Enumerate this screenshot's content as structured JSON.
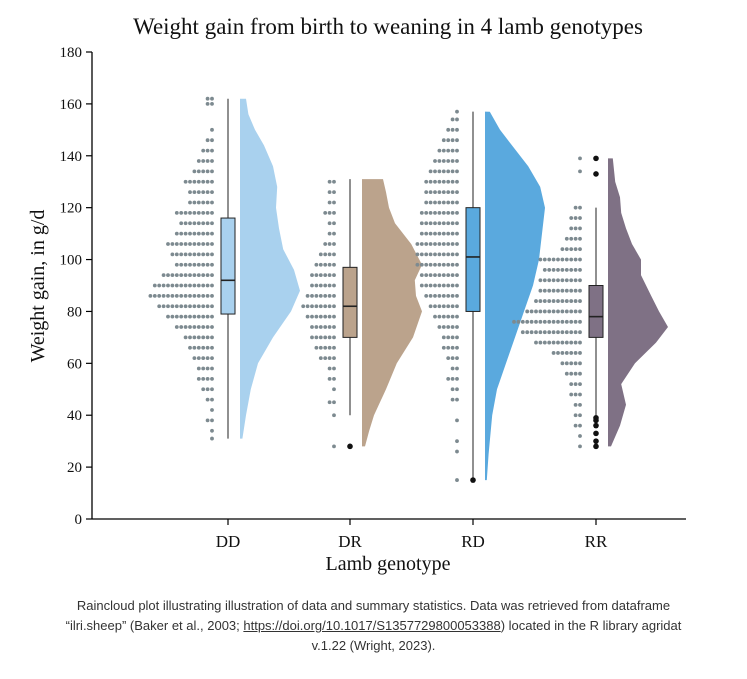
{
  "chart_data": {
    "type": "raincloud",
    "title": "Weight gain from birth to weaning in 4 lamb genotypes",
    "xlabel": "Lamb genotype",
    "ylabel": "Weight gain, in g/d",
    "ylim": [
      0,
      180
    ],
    "yticks": [
      0,
      20,
      40,
      60,
      80,
      100,
      120,
      140,
      160,
      180
    ],
    "categories": [
      "DD",
      "DR",
      "RD",
      "RR"
    ],
    "series": [
      {
        "category": "DD",
        "color": "#a9d1ee",
        "box": {
          "min": 31,
          "q1": 79,
          "median": 92,
          "q3": 116,
          "max": 162
        },
        "outliers": [],
        "density": [
          [
            31,
            0.04
          ],
          [
            40,
            0.1
          ],
          [
            50,
            0.18
          ],
          [
            60,
            0.3
          ],
          [
            70,
            0.55
          ],
          [
            80,
            0.85
          ],
          [
            88,
            1.0
          ],
          [
            96,
            0.9
          ],
          [
            104,
            0.72
          ],
          [
            112,
            0.65
          ],
          [
            120,
            0.6
          ],
          [
            128,
            0.62
          ],
          [
            136,
            0.55
          ],
          [
            144,
            0.4
          ],
          [
            150,
            0.25
          ],
          [
            156,
            0.14
          ],
          [
            162,
            0.1
          ]
        ],
        "dots": [
          [
            31,
            1
          ],
          [
            34,
            1
          ],
          [
            38,
            2
          ],
          [
            42,
            1
          ],
          [
            46,
            2
          ],
          [
            50,
            3
          ],
          [
            54,
            4
          ],
          [
            58,
            4
          ],
          [
            62,
            5
          ],
          [
            66,
            6
          ],
          [
            70,
            7
          ],
          [
            74,
            9
          ],
          [
            78,
            11
          ],
          [
            82,
            13
          ],
          [
            86,
            15
          ],
          [
            90,
            14
          ],
          [
            94,
            12
          ],
          [
            98,
            9
          ],
          [
            102,
            10
          ],
          [
            106,
            11
          ],
          [
            110,
            9
          ],
          [
            114,
            8
          ],
          [
            118,
            9
          ],
          [
            122,
            6
          ],
          [
            126,
            6
          ],
          [
            130,
            7
          ],
          [
            134,
            5
          ],
          [
            138,
            4
          ],
          [
            142,
            3
          ],
          [
            146,
            2
          ],
          [
            150,
            1
          ],
          [
            160,
            2
          ],
          [
            162,
            2
          ]
        ]
      },
      {
        "category": "DR",
        "color": "#bba38c",
        "box": {
          "min": 40,
          "q1": 70,
          "median": 82,
          "q3": 97,
          "max": 131
        },
        "outliers": [
          28
        ],
        "density": [
          [
            28,
            0.05
          ],
          [
            34,
            0.12
          ],
          [
            40,
            0.2
          ],
          [
            50,
            0.4
          ],
          [
            60,
            0.58
          ],
          [
            70,
            0.85
          ],
          [
            80,
            1.0
          ],
          [
            86,
            0.9
          ],
          [
            92,
            0.88
          ],
          [
            98,
            1.0
          ],
          [
            106,
            0.82
          ],
          [
            114,
            0.55
          ],
          [
            120,
            0.45
          ],
          [
            126,
            0.4
          ],
          [
            131,
            0.35
          ]
        ],
        "dots": [
          [
            28,
            1
          ],
          [
            40,
            1
          ],
          [
            45,
            2
          ],
          [
            50,
            1
          ],
          [
            54,
            2
          ],
          [
            58,
            2
          ],
          [
            62,
            4
          ],
          [
            66,
            5
          ],
          [
            70,
            6
          ],
          [
            74,
            6
          ],
          [
            78,
            7
          ],
          [
            82,
            8
          ],
          [
            86,
            7
          ],
          [
            90,
            6
          ],
          [
            94,
            6
          ],
          [
            98,
            5
          ],
          [
            102,
            4
          ],
          [
            106,
            3
          ],
          [
            110,
            2
          ],
          [
            114,
            2
          ],
          [
            118,
            3
          ],
          [
            122,
            2
          ],
          [
            126,
            2
          ],
          [
            130,
            2
          ]
        ]
      },
      {
        "category": "RD",
        "color": "#5aa9de",
        "box": {
          "min": 15,
          "q1": 80,
          "median": 101,
          "q3": 120,
          "max": 157
        },
        "outliers": [
          15
        ],
        "density": [
          [
            15,
            0.03
          ],
          [
            25,
            0.06
          ],
          [
            40,
            0.12
          ],
          [
            50,
            0.2
          ],
          [
            60,
            0.35
          ],
          [
            70,
            0.5
          ],
          [
            80,
            0.65
          ],
          [
            90,
            0.8
          ],
          [
            100,
            0.9
          ],
          [
            110,
            0.95
          ],
          [
            120,
            1.0
          ],
          [
            128,
            0.92
          ],
          [
            136,
            0.72
          ],
          [
            144,
            0.45
          ],
          [
            150,
            0.25
          ],
          [
            157,
            0.08
          ]
        ],
        "dots": [
          [
            15,
            1
          ],
          [
            26,
            1
          ],
          [
            30,
            1
          ],
          [
            38,
            1
          ],
          [
            46,
            2
          ],
          [
            50,
            2
          ],
          [
            54,
            3
          ],
          [
            58,
            2
          ],
          [
            62,
            3
          ],
          [
            66,
            4
          ],
          [
            70,
            4
          ],
          [
            74,
            5
          ],
          [
            78,
            6
          ],
          [
            82,
            7
          ],
          [
            86,
            8
          ],
          [
            90,
            9
          ],
          [
            94,
            9
          ],
          [
            98,
            10
          ],
          [
            102,
            10
          ],
          [
            106,
            10
          ],
          [
            110,
            9
          ],
          [
            114,
            9
          ],
          [
            118,
            9
          ],
          [
            122,
            8
          ],
          [
            126,
            8
          ],
          [
            130,
            8
          ],
          [
            134,
            7
          ],
          [
            138,
            6
          ],
          [
            142,
            5
          ],
          [
            146,
            4
          ],
          [
            150,
            3
          ],
          [
            154,
            2
          ],
          [
            157,
            1
          ]
        ]
      },
      {
        "category": "RR",
        "color": "#7f7185",
        "box": {
          "min": 40,
          "q1": 70,
          "median": 78,
          "q3": 90,
          "max": 120
        },
        "outliers": [
          28,
          30,
          33,
          36,
          38,
          39,
          133,
          139
        ],
        "density": [
          [
            28,
            0.05
          ],
          [
            36,
            0.2
          ],
          [
            44,
            0.3
          ],
          [
            52,
            0.22
          ],
          [
            60,
            0.45
          ],
          [
            68,
            0.8
          ],
          [
            74,
            1.0
          ],
          [
            80,
            0.85
          ],
          [
            86,
            0.72
          ],
          [
            94,
            0.55
          ],
          [
            100,
            0.55
          ],
          [
            106,
            0.4
          ],
          [
            112,
            0.3
          ],
          [
            118,
            0.22
          ],
          [
            124,
            0.2
          ],
          [
            130,
            0.12
          ],
          [
            139,
            0.08
          ]
        ],
        "dots": [
          [
            28,
            1
          ],
          [
            32,
            1
          ],
          [
            36,
            2
          ],
          [
            40,
            2
          ],
          [
            44,
            2
          ],
          [
            48,
            3
          ],
          [
            52,
            3
          ],
          [
            56,
            4
          ],
          [
            60,
            5
          ],
          [
            64,
            7
          ],
          [
            68,
            11
          ],
          [
            72,
            14
          ],
          [
            76,
            16
          ],
          [
            80,
            13
          ],
          [
            84,
            11
          ],
          [
            88,
            10
          ],
          [
            92,
            10
          ],
          [
            96,
            9
          ],
          [
            100,
            10
          ],
          [
            104,
            5
          ],
          [
            108,
            4
          ],
          [
            112,
            3
          ],
          [
            116,
            3
          ],
          [
            120,
            2
          ],
          [
            134,
            1
          ],
          [
            139,
            1
          ]
        ]
      }
    ]
  },
  "caption": {
    "line1": "Raincloud plot illustrating illustration of data and summary statistics. Data was retrieved from dataframe",
    "line2_pre": "“ilri.sheep” (Baker et al., 2003; ",
    "link": "https://doi.org/10.1017/S1357729800053388",
    "line2_post": ") located in the R library agridat",
    "line3": "v.1.22 (Wright, 2023)."
  }
}
